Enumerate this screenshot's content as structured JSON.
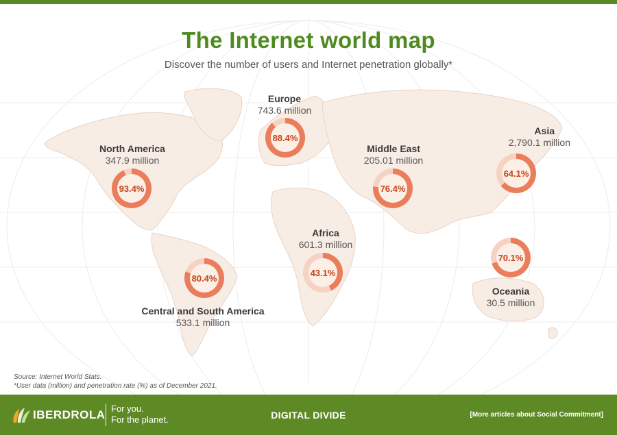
{
  "title": "The Internet world map",
  "subtitle": "Discover the number of users and Internet penetration globally*",
  "colors": {
    "brand_green": "#5e8a26",
    "title_green": "#4f8a1f",
    "ring_fill": "#ea7d5b",
    "ring_track": "#f6d2c2",
    "percent_text": "#c2441c",
    "land": "#f8ede5"
  },
  "regions": [
    {
      "name": "North America",
      "users": "347.9 million",
      "penetration": "93.4%",
      "value": 93.4
    },
    {
      "name": "Europe",
      "users": "743.6 million",
      "penetration": "88.4%",
      "value": 88.4
    },
    {
      "name": "Middle East",
      "users": "205.01 million",
      "penetration": "76.4%",
      "value": 76.4
    },
    {
      "name": "Asia",
      "users": "2,790.1 million",
      "penetration": "64.1%",
      "value": 64.1
    },
    {
      "name": "Africa",
      "users": "601.3 million",
      "penetration": "43.1%",
      "value": 43.1
    },
    {
      "name": "Oceania",
      "users": "30.5 million",
      "penetration": "70.1%",
      "value": 70.1
    },
    {
      "name": "Central and South America",
      "users": "533.1 million",
      "penetration": "80.4%",
      "value": 80.4
    }
  ],
  "notes": {
    "source": "Source: Internet World Stats.",
    "footnote": "*User data (million) and penetration rate (%) as of December 2021."
  },
  "footer": {
    "brand": "IBERDROLA",
    "tagline_line1": "For you.",
    "tagline_line2": "For the planet.",
    "section": "DIGITAL DIVIDE",
    "link": "[More articles about Social Commitment]",
    "logo_icon": "iberdrola-leaf-icon"
  }
}
